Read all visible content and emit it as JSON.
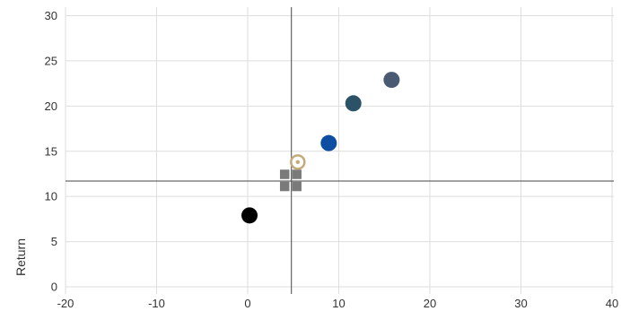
{
  "chart_data": {
    "type": "scatter",
    "title": "",
    "xlabel": "",
    "ylabel": "Return",
    "xlim": [
      -20,
      40
    ],
    "ylim": [
      0,
      30
    ],
    "x_ticks": [
      -20,
      -10,
      0,
      10,
      20,
      30,
      40
    ],
    "y_ticks": [
      0,
      5,
      10,
      15,
      20,
      25,
      30
    ],
    "grid": true,
    "reference_lines": {
      "x": 4.8,
      "y": 11.7
    },
    "points": [
      {
        "x": 0.2,
        "y": 7.9,
        "marker": "circle",
        "color": "#000000"
      },
      {
        "x": 4.8,
        "y": 11.7,
        "marker": "square-cluster",
        "color": "#7a7a7a"
      },
      {
        "x": 5.5,
        "y": 13.8,
        "marker": "ring",
        "color": "#c4aa7a"
      },
      {
        "x": 8.9,
        "y": 15.9,
        "marker": "circle",
        "color": "#0b4ea2"
      },
      {
        "x": 11.6,
        "y": 20.3,
        "marker": "circle",
        "color": "#2b5266"
      },
      {
        "x": 15.8,
        "y": 22.9,
        "marker": "circle",
        "color": "#4a5a72"
      }
    ]
  }
}
